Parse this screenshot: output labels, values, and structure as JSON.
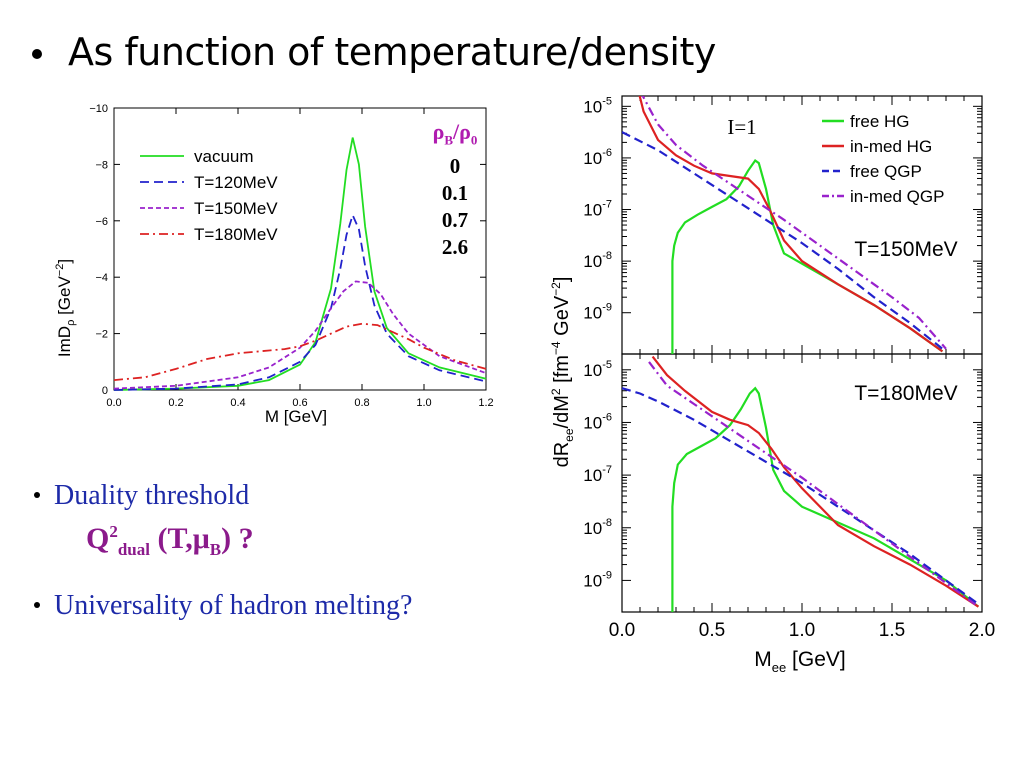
{
  "slide": {
    "title": "As function of temperature/density",
    "bullets": [
      {
        "text": "Duality threshold"
      },
      {
        "text": "Universality of hadron melting?"
      }
    ],
    "q2": {
      "base": "Q",
      "sup": "2",
      "sub": "dual",
      "args_open": " (T,",
      "mu": "μ",
      "mu_sub": "B",
      "args_close": ") ?"
    },
    "rho_legend": {
      "head_rho": "ρ",
      "head_sub_b": "B",
      "head_slash": "/ρ",
      "head_sub_0": "0",
      "values": [
        "0",
        "0.1",
        "0.7",
        "2.6"
      ]
    }
  },
  "colors": {
    "green": "#22dd22",
    "blue": "#2222cc",
    "purple": "#9922cc",
    "red": "#dd2222",
    "bullet_blue": "#1d2aa8",
    "magenta": "#8b1a8b"
  },
  "chart_data": [
    {
      "type": "line",
      "xlabel": "M [GeV]",
      "ylabel": "ImD_ρ [GeV^-2]",
      "ylabel_parts": {
        "a": "ImD",
        "b": "ρ",
        "c": " [GeV",
        "d": "−2",
        "e": "]"
      },
      "xlim": [
        0.0,
        1.2
      ],
      "ylim": [
        0,
        -10
      ],
      "xticks": [
        "0.0",
        "0.2",
        "0.4",
        "0.6",
        "0.8",
        "1.0",
        "1.2"
      ],
      "yticks": [
        "0",
        "−2",
        "−4",
        "−6",
        "−8",
        "−10"
      ],
      "legend_position": "top-left",
      "series": [
        {
          "name": "vacuum",
          "color": "green",
          "dash": "solid",
          "x": [
            0.0,
            0.2,
            0.4,
            0.5,
            0.6,
            0.65,
            0.7,
            0.73,
            0.75,
            0.77,
            0.79,
            0.81,
            0.84,
            0.88,
            0.95,
            1.05,
            1.2
          ],
          "y": [
            0,
            -0.05,
            -0.15,
            -0.35,
            -0.9,
            -1.7,
            -3.6,
            -5.9,
            -7.8,
            -8.95,
            -8.0,
            -5.8,
            -3.5,
            -2.2,
            -1.3,
            -0.8,
            -0.4
          ]
        },
        {
          "name": "T=120MeV",
          "color": "blue",
          "dash": "dashed",
          "x": [
            0.0,
            0.2,
            0.4,
            0.5,
            0.6,
            0.65,
            0.7,
            0.73,
            0.75,
            0.77,
            0.79,
            0.81,
            0.84,
            0.88,
            0.95,
            1.05,
            1.2
          ],
          "y": [
            0,
            -0.05,
            -0.2,
            -0.45,
            -1.0,
            -1.6,
            -2.9,
            -4.3,
            -5.5,
            -6.2,
            -5.7,
            -4.4,
            -3.0,
            -2.0,
            -1.2,
            -0.7,
            -0.3
          ]
        },
        {
          "name": "T=150MeV",
          "color": "purple",
          "dash": "short-dashed",
          "x": [
            0.0,
            0.2,
            0.4,
            0.5,
            0.6,
            0.65,
            0.7,
            0.74,
            0.78,
            0.82,
            0.86,
            0.9,
            0.95,
            1.05,
            1.2
          ],
          "y": [
            -0.05,
            -0.15,
            -0.45,
            -0.8,
            -1.5,
            -2.1,
            -2.9,
            -3.5,
            -3.85,
            -3.8,
            -3.4,
            -2.7,
            -2.0,
            -1.2,
            -0.6
          ]
        },
        {
          "name": "T=180MeV",
          "color": "red",
          "dash": "dash-dot",
          "x": [
            0.0,
            0.1,
            0.2,
            0.3,
            0.4,
            0.5,
            0.55,
            0.6,
            0.65,
            0.7,
            0.75,
            0.8,
            0.85,
            0.9,
            0.95,
            1.0,
            1.1,
            1.2
          ],
          "y": [
            -0.35,
            -0.45,
            -0.75,
            -1.1,
            -1.3,
            -1.4,
            -1.45,
            -1.55,
            -1.75,
            -2.0,
            -2.25,
            -2.35,
            -2.3,
            -2.05,
            -1.8,
            -1.5,
            -1.05,
            -0.75
          ]
        }
      ]
    },
    {
      "type": "line",
      "log_y": true,
      "shared_x": true,
      "xlabel_parts": {
        "a": "M",
        "b": "ee",
        "c": " [GeV]"
      },
      "ylabel_parts": {
        "a": "dR",
        "b": "ee",
        "c": "/dM",
        "d": "2",
        "e": " [fm",
        "f": "−4",
        "g": " GeV",
        "h": "−2",
        "i": "]"
      },
      "xlim": [
        0.0,
        2.0
      ],
      "xticks": [
        "0.0",
        "0.5",
        "1.0",
        "1.5",
        "2.0"
      ],
      "legend_position": "top-right",
      "legend": [
        {
          "name": "free HG",
          "color": "green",
          "dash": "solid"
        },
        {
          "name": "in-med HG",
          "color": "red",
          "dash": "solid"
        },
        {
          "name": "free QGP",
          "color": "blue",
          "dash": "dashed"
        },
        {
          "name": "in-med QGP",
          "color": "purple",
          "dash": "dash-dot"
        }
      ],
      "panels": [
        {
          "annotation_left": "I=1",
          "annotation_right": "T=150MeV",
          "ylim_log10": [
            -9.8,
            -4.8
          ],
          "yticks": [
            {
              "base": "10",
              "exp": "-5"
            },
            {
              "base": "10",
              "exp": "-6"
            },
            {
              "base": "10",
              "exp": "-7"
            },
            {
              "base": "10",
              "exp": "-8"
            },
            {
              "base": "10",
              "exp": "-9"
            }
          ],
          "ytick_vals": [
            -5,
            -6,
            -7,
            -8,
            -9
          ],
          "series": [
            {
              "color": "green",
              "dash": "solid",
              "x": [
                0.28,
                0.28,
                0.29,
                0.31,
                0.35,
                0.42,
                0.5,
                0.58,
                0.65,
                0.7,
                0.74,
                0.76,
                0.8,
                0.84,
                0.9,
                1.0,
                1.2,
                1.4,
                1.6,
                1.78
              ],
              "y": [
                -9.8,
                -8.0,
                -7.7,
                -7.45,
                -7.25,
                -7.1,
                -6.95,
                -6.8,
                -6.55,
                -6.25,
                -6.05,
                -6.1,
                -6.6,
                -7.3,
                -7.85,
                -8.05,
                -8.45,
                -8.85,
                -9.3,
                -9.75
              ]
            },
            {
              "color": "red",
              "dash": "solid",
              "x": [
                0.08,
                0.12,
                0.2,
                0.3,
                0.4,
                0.5,
                0.6,
                0.7,
                0.76,
                0.82,
                0.9,
                1.0,
                1.2,
                1.4,
                1.6,
                1.78
              ],
              "y": [
                -4.55,
                -5.1,
                -5.65,
                -5.95,
                -6.15,
                -6.3,
                -6.35,
                -6.4,
                -6.6,
                -7.0,
                -7.6,
                -8.0,
                -8.45,
                -8.85,
                -9.3,
                -9.75
              ]
            },
            {
              "color": "blue",
              "dash": "dashed",
              "x": [
                0.0,
                0.2,
                0.4,
                0.6,
                0.8,
                1.0,
                1.2,
                1.4,
                1.6,
                1.78
              ],
              "y": [
                -5.5,
                -5.85,
                -6.3,
                -6.75,
                -7.2,
                -7.65,
                -8.15,
                -8.7,
                -9.2,
                -9.7
              ]
            },
            {
              "color": "purple",
              "dash": "dash-dot",
              "x": [
                0.1,
                0.2,
                0.3,
                0.45,
                0.6,
                0.75,
                0.9,
                1.1,
                1.3,
                1.5,
                1.65,
                1.8
              ],
              "y": [
                -4.7,
                -5.35,
                -5.75,
                -6.15,
                -6.5,
                -6.85,
                -7.2,
                -7.7,
                -8.2,
                -8.7,
                -9.1,
                -9.7
              ]
            }
          ]
        },
        {
          "annotation_right": "T=180MeV",
          "ylim_log10": [
            -9.6,
            -4.7
          ],
          "yticks": [
            {
              "base": "10",
              "exp": "-5"
            },
            {
              "base": "10",
              "exp": "-6"
            },
            {
              "base": "10",
              "exp": "-7"
            },
            {
              "base": "10",
              "exp": "-8"
            },
            {
              "base": "10",
              "exp": "-9"
            }
          ],
          "ytick_vals": [
            -5,
            -6,
            -7,
            -8,
            -9
          ],
          "series": [
            {
              "color": "green",
              "dash": "solid",
              "x": [
                0.28,
                0.28,
                0.29,
                0.31,
                0.36,
                0.44,
                0.52,
                0.6,
                0.66,
                0.71,
                0.74,
                0.76,
                0.8,
                0.84,
                0.9,
                1.0,
                1.2,
                1.4,
                1.6,
                1.8,
                1.98
              ],
              "y": [
                -9.6,
                -7.6,
                -7.15,
                -6.8,
                -6.6,
                -6.45,
                -6.3,
                -6.05,
                -5.75,
                -5.45,
                -5.35,
                -5.45,
                -6.1,
                -6.9,
                -7.3,
                -7.6,
                -7.9,
                -8.2,
                -8.6,
                -9.0,
                -9.5
              ]
            },
            {
              "color": "red",
              "dash": "solid",
              "x": [
                0.17,
                0.25,
                0.35,
                0.5,
                0.6,
                0.7,
                0.76,
                0.83,
                0.9,
                1.0,
                1.2,
                1.4,
                1.6,
                1.8,
                1.98
              ],
              "y": [
                -4.75,
                -5.1,
                -5.4,
                -5.8,
                -5.95,
                -6.05,
                -6.2,
                -6.5,
                -6.85,
                -7.25,
                -7.95,
                -8.35,
                -8.7,
                -9.1,
                -9.5
              ]
            },
            {
              "color": "blue",
              "dash": "dashed",
              "x": [
                0.0,
                0.1,
                0.2,
                0.4,
                0.6,
                0.8,
                1.0,
                1.2,
                1.4,
                1.6,
                1.8,
                1.98
              ],
              "y": [
                -5.35,
                -5.45,
                -5.6,
                -5.95,
                -6.35,
                -6.75,
                -7.15,
                -7.6,
                -8.05,
                -8.5,
                -9.0,
                -9.45
              ]
            },
            {
              "color": "purple",
              "dash": "dash-dot",
              "x": [
                0.15,
                0.25,
                0.4,
                0.55,
                0.7,
                0.85,
                1.0,
                1.2,
                1.4,
                1.6,
                1.8,
                1.98
              ],
              "y": [
                -4.85,
                -5.3,
                -5.65,
                -6.0,
                -6.35,
                -6.7,
                -7.05,
                -7.55,
                -8.05,
                -8.55,
                -9.05,
                -9.5
              ]
            }
          ]
        }
      ]
    }
  ]
}
